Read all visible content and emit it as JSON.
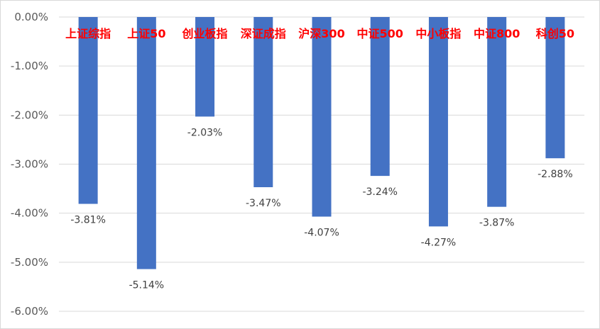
{
  "chart_data": {
    "type": "bar",
    "title": "",
    "xlabel": "",
    "ylabel": "",
    "categories": [
      "上证综指",
      "上证50",
      "创业板指",
      "深证成指",
      "沪深300",
      "中证500",
      "中小板指",
      "中证800",
      "科创50"
    ],
    "values": [
      -3.81,
      -5.14,
      -2.03,
      -3.47,
      -4.07,
      -3.24,
      -4.27,
      -3.87,
      -2.88
    ],
    "data_labels": [
      "-3.81%",
      "-5.14%",
      "-2.03%",
      "-3.47%",
      "-4.07%",
      "-3.24%",
      "-4.27%",
      "-3.87%",
      "-2.88%"
    ],
    "ylim": [
      -6,
      0
    ],
    "yticks": [
      0,
      -1,
      -2,
      -3,
      -4,
      -5,
      -6
    ],
    "ytick_labels": [
      "0.00%",
      "-1.00%",
      "-2.00%",
      "-3.00%",
      "-4.00%",
      "-5.00%",
      "-6.00%"
    ],
    "grid": true,
    "legend": "none",
    "colors": {
      "bar": "#4472c4",
      "category_label": "#ff0000",
      "tick_label": "#595959",
      "data_label": "#404040",
      "gridline": "#d9d9d9"
    }
  }
}
